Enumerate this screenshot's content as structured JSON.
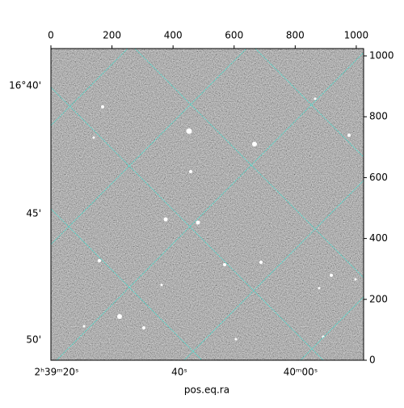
{
  "chart_data": {
    "type": "image",
    "xlabel": "pos.eq.ra",
    "xlim": [
      0,
      1024
    ],
    "xticks": [
      0,
      200,
      400,
      600,
      800,
      1000
    ],
    "ylim": [
      0,
      1024
    ],
    "yticks": [
      0,
      200,
      400,
      600,
      800,
      1000
    ],
    "ra_tick_labels": [
      "2ʰ39ᵐ20ˢ",
      "40ˢ",
      "40ᵐ00ˢ"
    ],
    "dec_tick_labels": [
      "16°40'",
      "45'",
      "50'"
    ],
    "grid_color": "#40e0d0"
  }
}
